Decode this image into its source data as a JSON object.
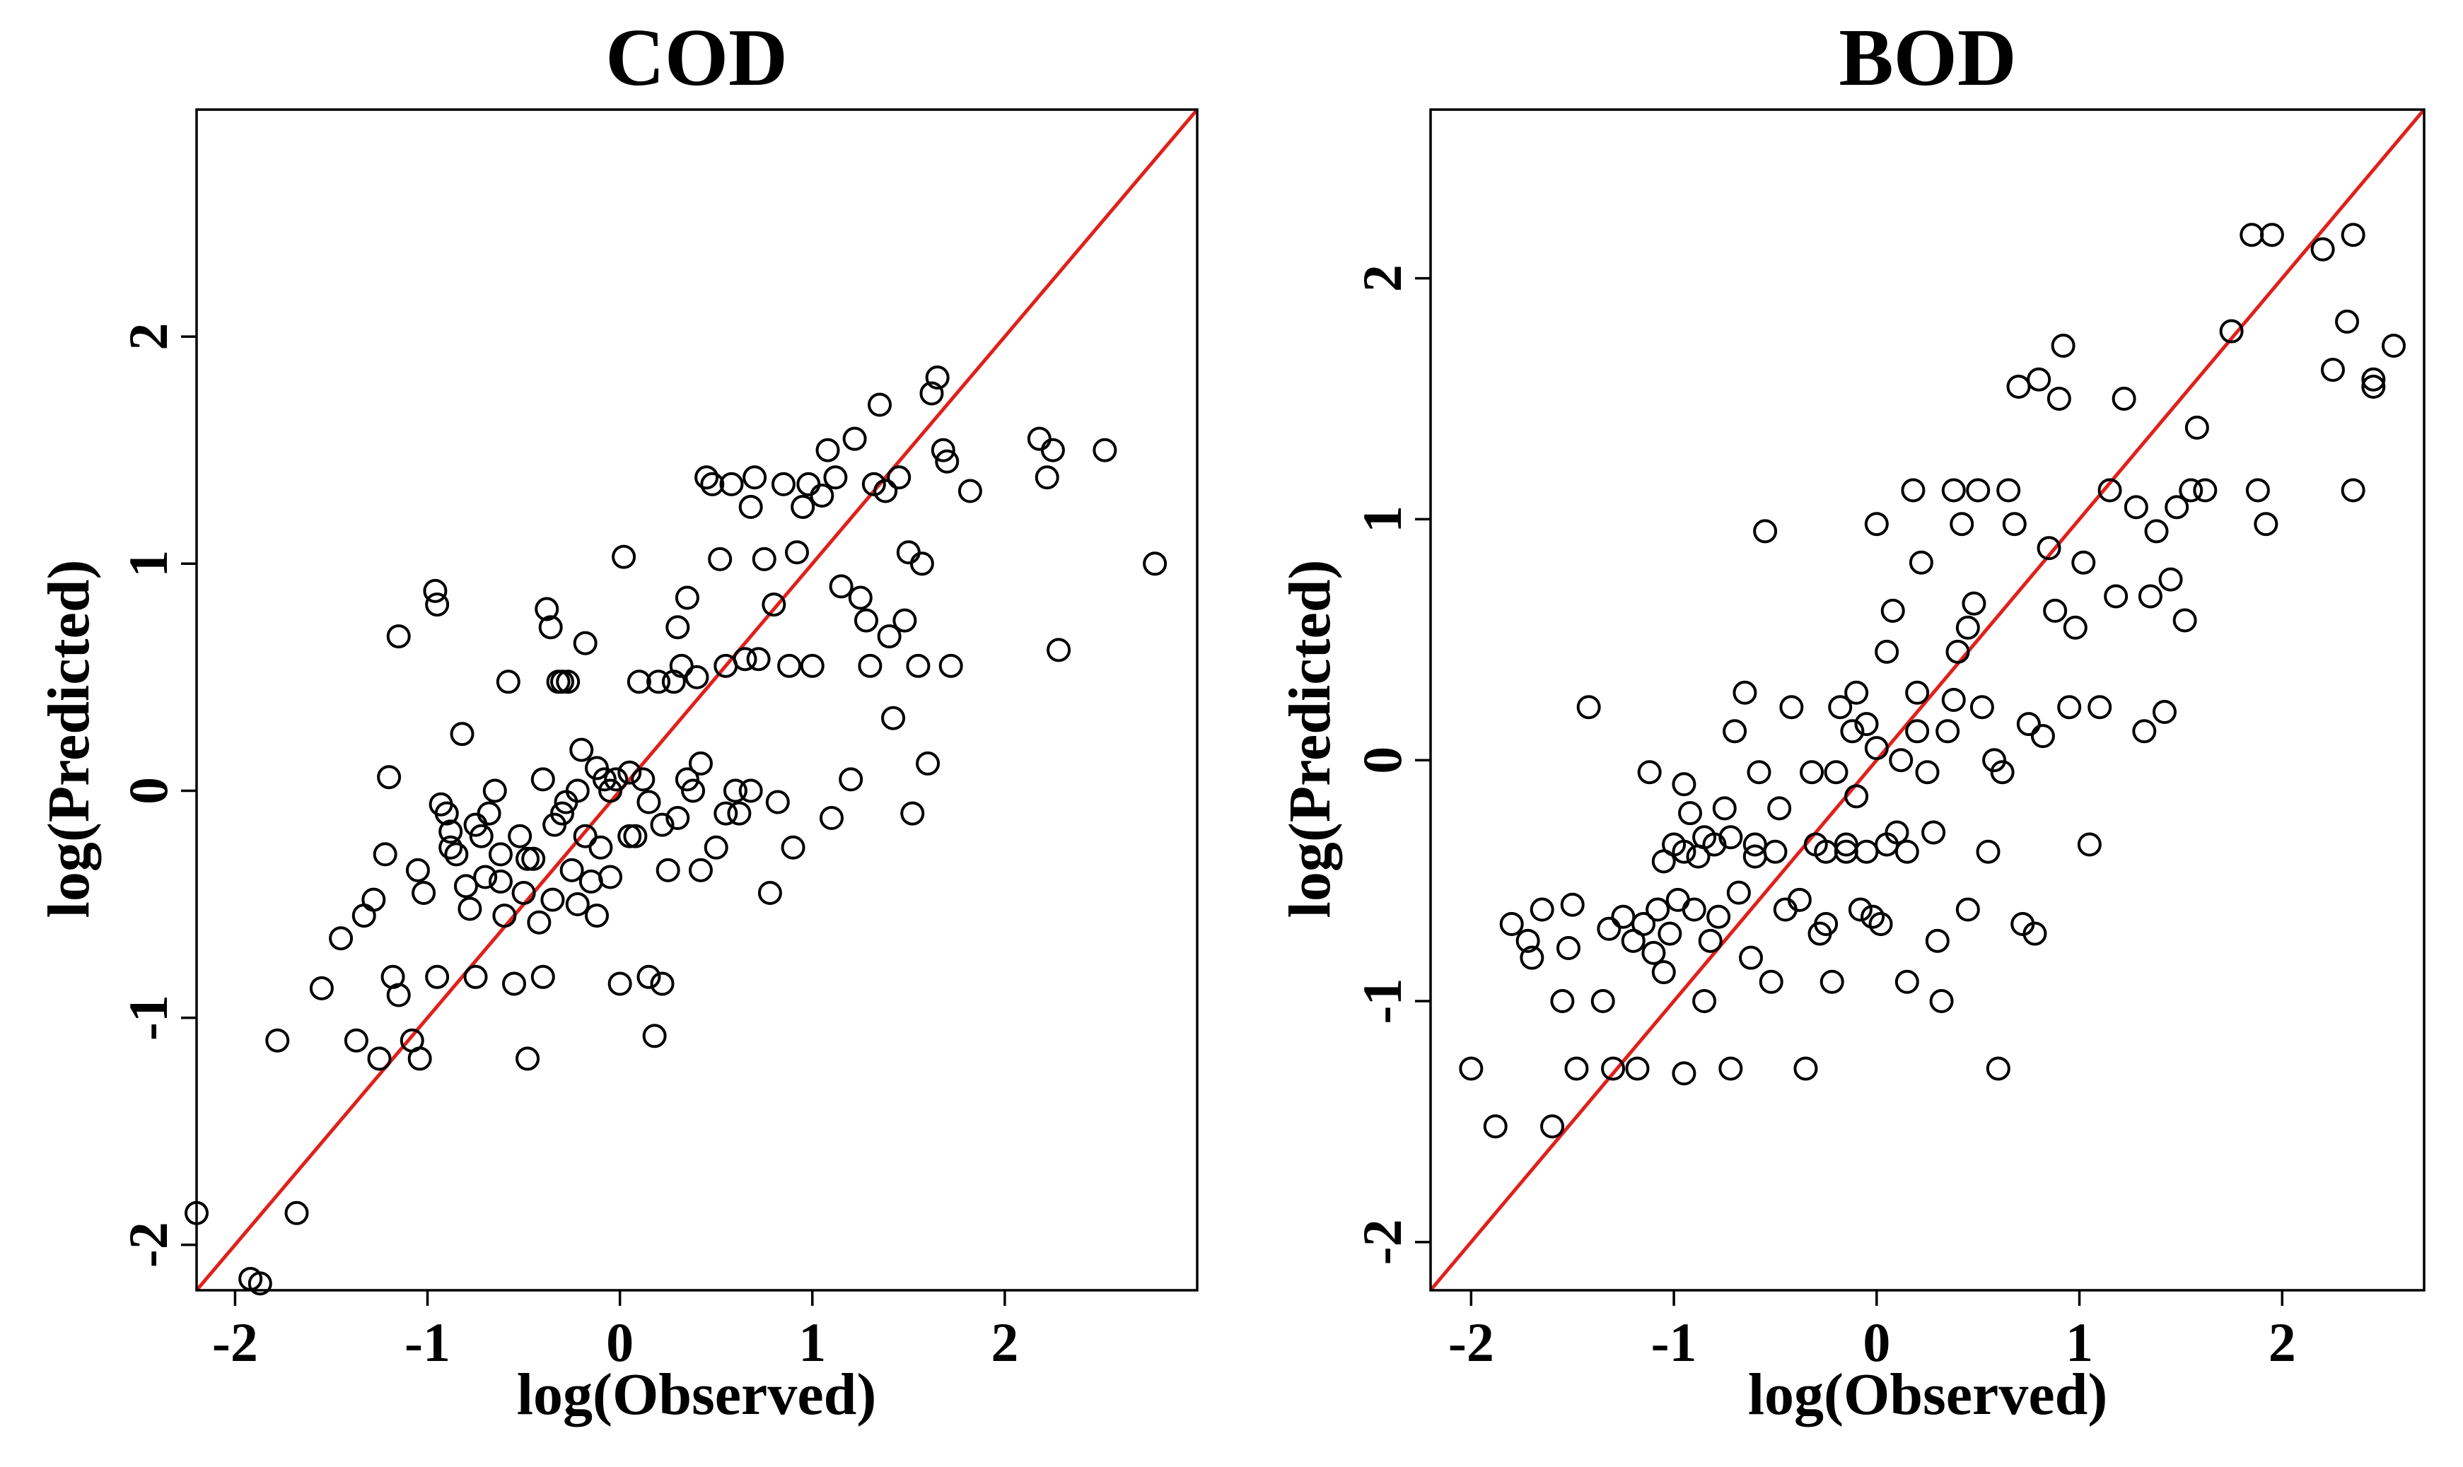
{
  "colors": {
    "points": "#000000",
    "reference_line": "#e0201b",
    "background": "#ffffff"
  },
  "chart_data": [
    {
      "type": "scatter",
      "title": "COD",
      "xlabel": "log(Observed)",
      "ylabel": "log(Predicted)",
      "xlim": [
        -2.2,
        3.0
      ],
      "ylim": [
        -2.2,
        3.0
      ],
      "xticks": [
        -2,
        -1,
        0,
        1,
        2
      ],
      "yticks": [
        -2,
        -1,
        0,
        1,
        2
      ],
      "xtick_labels": [
        "-2",
        "-1",
        "0",
        "1",
        "2"
      ],
      "ytick_labels": [
        "-2",
        "-1",
        "0",
        "1",
        "2"
      ],
      "reference_line": "y = x",
      "points": [
        [
          -2.2,
          -1.86
        ],
        [
          -1.92,
          -2.15
        ],
        [
          -1.87,
          -2.17
        ],
        [
          -1.68,
          -1.86
        ],
        [
          -1.78,
          -1.1
        ],
        [
          -1.55,
          -0.87
        ],
        [
          -1.45,
          -0.65
        ],
        [
          -1.33,
          -0.55
        ],
        [
          -1.28,
          -0.48
        ],
        [
          -1.37,
          -1.1
        ],
        [
          -1.25,
          -1.18
        ],
        [
          -1.22,
          -0.28
        ],
        [
          -1.2,
          0.06
        ],
        [
          -1.15,
          0.68
        ],
        [
          -1.18,
          -0.82
        ],
        [
          -1.15,
          -0.9
        ],
        [
          -1.08,
          -1.1
        ],
        [
          -1.04,
          -1.18
        ],
        [
          -1.02,
          -0.45
        ],
        [
          -0.95,
          -0.82
        ],
        [
          -0.96,
          0.88
        ],
        [
          -0.95,
          0.82
        ],
        [
          -0.93,
          -0.06
        ],
        [
          -0.9,
          -0.1
        ],
        [
          -0.88,
          -0.18
        ],
        [
          -0.85,
          -0.28
        ],
        [
          -0.82,
          0.25
        ],
        [
          -0.8,
          -0.42
        ],
        [
          -0.78,
          -0.52
        ],
        [
          -0.75,
          -0.82
        ],
        [
          -0.72,
          -0.2
        ],
        [
          -0.7,
          -0.38
        ],
        [
          -0.68,
          -0.1
        ],
        [
          -0.65,
          0.0
        ],
        [
          -0.62,
          -0.28
        ],
        [
          -0.6,
          -0.55
        ],
        [
          -0.58,
          0.48
        ],
        [
          -0.55,
          -0.85
        ],
        [
          -0.52,
          -0.2
        ],
        [
          -0.5,
          -0.45
        ],
        [
          -0.48,
          -1.18
        ],
        [
          -0.45,
          -0.3
        ],
        [
          -0.42,
          -0.58
        ],
        [
          -0.4,
          -0.82
        ],
        [
          -0.38,
          0.8
        ],
        [
          -0.36,
          0.72
        ],
        [
          -0.34,
          -0.15
        ],
        [
          -0.32,
          0.48
        ],
        [
          -0.3,
          0.48
        ],
        [
          -0.28,
          -0.05
        ],
        [
          -0.27,
          0.48
        ],
        [
          -0.25,
          -0.35
        ],
        [
          -0.22,
          0.0
        ],
        [
          -0.2,
          0.18
        ],
        [
          -0.18,
          0.65
        ],
        [
          -0.15,
          -0.4
        ],
        [
          -0.12,
          0.1
        ],
        [
          -0.1,
          -0.25
        ],
        [
          -0.08,
          0.05
        ],
        [
          -0.05,
          -0.38
        ],
        [
          -0.02,
          0.05
        ],
        [
          0.02,
          1.03
        ],
        [
          0.0,
          -0.85
        ],
        [
          0.05,
          0.08
        ],
        [
          0.08,
          -0.2
        ],
        [
          0.1,
          0.48
        ],
        [
          0.12,
          0.05
        ],
        [
          0.15,
          -0.82
        ],
        [
          0.18,
          -1.08
        ],
        [
          0.2,
          0.48
        ],
        [
          0.22,
          -0.85
        ],
        [
          0.25,
          -0.35
        ],
        [
          0.28,
          0.48
        ],
        [
          0.3,
          0.72
        ],
        [
          0.32,
          0.55
        ],
        [
          0.35,
          0.85
        ],
        [
          0.38,
          0.0
        ],
        [
          0.4,
          0.5
        ],
        [
          0.42,
          0.12
        ],
        [
          0.45,
          1.38
        ],
        [
          0.48,
          1.35
        ],
        [
          0.5,
          -0.25
        ],
        [
          0.52,
          1.02
        ],
        [
          0.55,
          0.55
        ],
        [
          0.58,
          1.35
        ],
        [
          0.6,
          0.0
        ],
        [
          0.62,
          -0.1
        ],
        [
          0.65,
          0.58
        ],
        [
          0.68,
          1.25
        ],
        [
          0.7,
          1.38
        ],
        [
          0.72,
          0.58
        ],
        [
          0.75,
          1.02
        ],
        [
          0.78,
          -0.45
        ],
        [
          0.8,
          0.82
        ],
        [
          0.82,
          -0.05
        ],
        [
          0.85,
          1.35
        ],
        [
          0.88,
          0.55
        ],
        [
          0.9,
          -0.25
        ],
        [
          0.92,
          1.05
        ],
        [
          0.95,
          1.25
        ],
        [
          0.98,
          1.35
        ],
        [
          1.0,
          0.55
        ],
        [
          1.05,
          1.3
        ],
        [
          1.08,
          1.5
        ],
        [
          1.1,
          -0.12
        ],
        [
          1.12,
          1.38
        ],
        [
          1.15,
          0.9
        ],
        [
          1.2,
          0.05
        ],
        [
          1.22,
          1.55
        ],
        [
          1.25,
          0.85
        ],
        [
          1.28,
          0.75
        ],
        [
          1.3,
          0.55
        ],
        [
          1.32,
          1.35
        ],
        [
          1.35,
          1.7
        ],
        [
          1.38,
          1.32
        ],
        [
          1.4,
          0.68
        ],
        [
          1.42,
          0.32
        ],
        [
          1.45,
          1.38
        ],
        [
          1.48,
          0.75
        ],
        [
          1.5,
          1.05
        ],
        [
          1.52,
          -0.1
        ],
        [
          1.55,
          0.55
        ],
        [
          1.57,
          1.0
        ],
        [
          1.6,
          0.12
        ],
        [
          1.62,
          1.75
        ],
        [
          1.65,
          1.82
        ],
        [
          1.68,
          1.5
        ],
        [
          1.7,
          1.45
        ],
        [
          1.72,
          0.55
        ],
        [
          1.82,
          1.32
        ],
        [
          2.18,
          1.55
        ],
        [
          2.22,
          1.38
        ],
        [
          2.25,
          1.5
        ],
        [
          2.28,
          0.62
        ],
        [
          2.52,
          1.5
        ],
        [
          2.78,
          1.0
        ],
        [
          -0.62,
          -0.4
        ],
        [
          -0.48,
          -0.3
        ],
        [
          -0.35,
          -0.48
        ],
        [
          -0.22,
          -0.5
        ],
        [
          -0.12,
          -0.55
        ],
        [
          0.05,
          -0.2
        ],
        [
          0.15,
          -0.05
        ],
        [
          0.3,
          -0.12
        ],
        [
          0.42,
          -0.35
        ],
        [
          0.55,
          -0.1
        ],
        [
          0.68,
          0.0
        ],
        [
          -0.05,
          0.0
        ],
        [
          -0.18,
          -0.2
        ],
        [
          -0.3,
          -0.1
        ],
        [
          -0.4,
          0.05
        ],
        [
          0.22,
          -0.15
        ],
        [
          0.35,
          0.05
        ],
        [
          -0.75,
          -0.15
        ],
        [
          -0.88,
          -0.25
        ],
        [
          -1.05,
          -0.35
        ]
      ]
    },
    {
      "type": "scatter",
      "title": "BOD",
      "xlabel": "log(Observed)",
      "ylabel": "log(Predicted)",
      "xlim": [
        -2.2,
        2.7
      ],
      "ylim": [
        -2.2,
        2.7
      ],
      "xticks": [
        -2,
        -1,
        0,
        1,
        2
      ],
      "yticks": [
        -2,
        -1,
        0,
        1,
        2
      ],
      "xtick_labels": [
        "-2",
        "-1",
        "0",
        "1",
        "2"
      ],
      "ytick_labels": [
        "-2",
        "-1",
        "0",
        "1",
        "2"
      ],
      "reference_line": "y = x",
      "points": [
        [
          -2.0,
          -1.28
        ],
        [
          -1.88,
          -1.52
        ],
        [
          -1.8,
          -0.68
        ],
        [
          -1.72,
          -0.75
        ],
        [
          -1.7,
          -0.82
        ],
        [
          -1.65,
          -0.62
        ],
        [
          -1.6,
          -1.52
        ],
        [
          -1.55,
          -1.0
        ],
        [
          -1.52,
          -0.78
        ],
        [
          -1.5,
          -0.6
        ],
        [
          -1.48,
          -1.28
        ],
        [
          -1.42,
          0.22
        ],
        [
          -1.35,
          -1.0
        ],
        [
          -1.32,
          -0.7
        ],
        [
          -1.3,
          -1.28
        ],
        [
          -1.25,
          -0.65
        ],
        [
          -1.2,
          -0.75
        ],
        [
          -1.18,
          -1.28
        ],
        [
          -1.15,
          -0.68
        ],
        [
          -1.12,
          -0.05
        ],
        [
          -1.1,
          -0.8
        ],
        [
          -1.08,
          -0.62
        ],
        [
          -1.05,
          -0.88
        ],
        [
          -1.02,
          -0.72
        ],
        [
          -1.0,
          -0.35
        ],
        [
          -0.98,
          -0.58
        ],
        [
          -0.95,
          -0.1
        ],
        [
          -0.95,
          -1.3
        ],
        [
          -0.92,
          -0.22
        ],
        [
          -0.9,
          -0.62
        ],
        [
          -0.88,
          -0.4
        ],
        [
          -0.85,
          -1.0
        ],
        [
          -0.82,
          -0.75
        ],
        [
          -0.8,
          -0.35
        ],
        [
          -0.78,
          -0.65
        ],
        [
          -0.75,
          -0.2
        ],
        [
          -0.72,
          -1.28
        ],
        [
          -0.7,
          0.12
        ],
        [
          -0.68,
          -0.55
        ],
        [
          -0.65,
          0.28
        ],
        [
          -0.62,
          -0.82
        ],
        [
          -0.6,
          -0.35
        ],
        [
          -0.58,
          -0.05
        ],
        [
          -0.55,
          0.95
        ],
        [
          -0.52,
          -0.92
        ],
        [
          -0.5,
          -0.38
        ],
        [
          -0.48,
          -0.2
        ],
        [
          -0.45,
          -0.62
        ],
        [
          -0.42,
          0.22
        ],
        [
          -0.38,
          -0.58
        ],
        [
          -0.35,
          -1.28
        ],
        [
          -0.32,
          -0.05
        ],
        [
          -0.3,
          -0.35
        ],
        [
          -0.28,
          -0.72
        ],
        [
          -0.25,
          -0.68
        ],
        [
          -0.22,
          -0.92
        ],
        [
          -0.2,
          -0.05
        ],
        [
          -0.18,
          0.22
        ],
        [
          -0.15,
          -0.35
        ],
        [
          -0.12,
          0.12
        ],
        [
          -0.1,
          0.28
        ],
        [
          -0.08,
          -0.62
        ],
        [
          -0.05,
          0.15
        ],
        [
          -0.02,
          -0.65
        ],
        [
          0.0,
          0.98
        ],
        [
          0.02,
          -0.68
        ],
        [
          0.05,
          0.45
        ],
        [
          0.08,
          0.62
        ],
        [
          0.1,
          -0.3
        ],
        [
          0.12,
          0.0
        ],
        [
          0.15,
          -0.92
        ],
        [
          0.18,
          1.12
        ],
        [
          0.2,
          0.28
        ],
        [
          0.22,
          0.82
        ],
        [
          0.25,
          -0.05
        ],
        [
          0.28,
          -0.3
        ],
        [
          0.3,
          -0.75
        ],
        [
          0.32,
          -1.0
        ],
        [
          0.35,
          0.12
        ],
        [
          0.38,
          1.12
        ],
        [
          0.4,
          0.45
        ],
        [
          0.42,
          0.98
        ],
        [
          0.45,
          -0.62
        ],
        [
          0.48,
          0.65
        ],
        [
          0.5,
          1.12
        ],
        [
          0.52,
          0.22
        ],
        [
          0.55,
          -0.38
        ],
        [
          0.58,
          0.0
        ],
        [
          0.6,
          -1.28
        ],
        [
          0.62,
          -0.05
        ],
        [
          0.65,
          1.12
        ],
        [
          0.68,
          0.98
        ],
        [
          0.7,
          1.55
        ],
        [
          0.72,
          -0.68
        ],
        [
          0.75,
          0.15
        ],
        [
          0.78,
          -0.72
        ],
        [
          0.8,
          1.58
        ],
        [
          0.82,
          0.1
        ],
        [
          0.85,
          0.88
        ],
        [
          0.88,
          0.62
        ],
        [
          0.9,
          1.5
        ],
        [
          0.92,
          1.72
        ],
        [
          0.95,
          0.22
        ],
        [
          0.98,
          0.55
        ],
        [
          1.02,
          0.82
        ],
        [
          1.05,
          -0.35
        ],
        [
          1.1,
          0.22
        ],
        [
          1.15,
          1.12
        ],
        [
          1.18,
          0.68
        ],
        [
          1.22,
          1.5
        ],
        [
          1.28,
          1.05
        ],
        [
          1.32,
          0.12
        ],
        [
          1.35,
          0.68
        ],
        [
          1.38,
          0.95
        ],
        [
          1.42,
          0.2
        ],
        [
          1.45,
          0.75
        ],
        [
          1.48,
          1.05
        ],
        [
          1.52,
          0.58
        ],
        [
          1.55,
          1.12
        ],
        [
          1.58,
          1.38
        ],
        [
          1.62,
          1.12
        ],
        [
          1.75,
          1.78
        ],
        [
          1.85,
          2.18
        ],
        [
          1.88,
          1.12
        ],
        [
          1.92,
          0.98
        ],
        [
          1.95,
          2.18
        ],
        [
          2.2,
          2.12
        ],
        [
          2.25,
          1.62
        ],
        [
          2.32,
          1.82
        ],
        [
          2.35,
          1.12
        ],
        [
          2.35,
          2.18
        ],
        [
          2.45,
          1.55
        ],
        [
          2.45,
          1.58
        ],
        [
          2.55,
          1.72
        ],
        [
          -0.05,
          -0.38
        ],
        [
          -0.15,
          -0.38
        ],
        [
          -0.25,
          -0.38
        ],
        [
          0.05,
          -0.35
        ],
        [
          0.15,
          -0.38
        ],
        [
          -0.6,
          -0.4
        ],
        [
          -0.72,
          -0.32
        ],
        [
          -0.85,
          -0.32
        ],
        [
          -0.95,
          -0.38
        ],
        [
          -1.05,
          -0.42
        ],
        [
          0.38,
          0.25
        ],
        [
          0.45,
          0.55
        ],
        [
          0.2,
          0.12
        ],
        [
          0.0,
          0.05
        ],
        [
          -0.1,
          -0.15
        ]
      ]
    }
  ]
}
